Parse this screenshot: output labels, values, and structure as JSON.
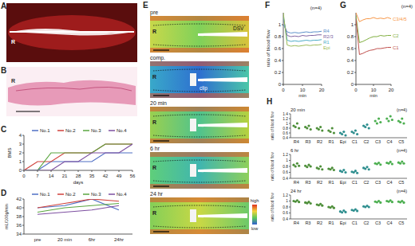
{
  "panels": [
    {
      "label": "A",
      "texts": [
        "R"
      ]
    },
    {
      "label": "B",
      "texts": [
        "R"
      ]
    },
    {
      "label": "E",
      "frames": [
        {
          "title": "pre",
          "texts": [
            "R",
            "DSV"
          ]
        },
        {
          "title": "comp.",
          "texts": [
            "R",
            "clip"
          ]
        },
        {
          "title": "20 min",
          "texts": [
            "R"
          ]
        },
        {
          "title": "6 hr",
          "texts": [
            "R"
          ]
        },
        {
          "title": "24 hr",
          "texts": [
            "R"
          ]
        }
      ],
      "colorbar": [
        "high",
        "low"
      ]
    }
  ],
  "chart_data": [
    {
      "type": "line",
      "label": "C",
      "ylabel": "BMS",
      "xlabel": "days",
      "legend": "top",
      "x": [
        0,
        7,
        14,
        21,
        28,
        35,
        42,
        49,
        56
      ],
      "xlim": [
        0,
        56
      ],
      "xticks": [
        0,
        7,
        14,
        21,
        28,
        35,
        42,
        49,
        56
      ],
      "ylim": [
        0,
        4
      ],
      "yticks": [
        0,
        1,
        2,
        3,
        4
      ],
      "series": [
        {
          "name": "No.1",
          "color": "#4f6fc4",
          "values": [
            0,
            0,
            1,
            1,
            1,
            1,
            2,
            2,
            2
          ]
        },
        {
          "name": "No.2",
          "color": "#d0413b",
          "values": [
            0,
            1,
            1,
            2,
            2,
            2,
            3,
            3,
            3
          ]
        },
        {
          "name": "No.3",
          "color": "#5aa640",
          "values": [
            0,
            0,
            2,
            2,
            2,
            2,
            3,
            3,
            3
          ]
        },
        {
          "name": "No.4",
          "color": "#7d4fa0",
          "values": [
            0,
            0,
            0,
            1,
            1,
            2,
            2,
            2,
            3
          ]
        }
      ]
    },
    {
      "type": "line",
      "label": "D",
      "ylabel": "mL/100g/min",
      "legend": "top",
      "categories": [
        "pre",
        "20 min",
        "6hr",
        "24hr"
      ],
      "ylim": [
        34,
        42
      ],
      "yticks": [
        34,
        36,
        38,
        40,
        42
      ],
      "series": [
        {
          "name": "No.1",
          "color": "#4f6fc4",
          "values": [
            40,
            40.5,
            42,
            39.5
          ]
        },
        {
          "name": "No.2",
          "color": "#d0413b",
          "values": [
            40,
            41,
            42,
            41.5
          ]
        },
        {
          "name": "No.3",
          "color": "#5aa640",
          "values": [
            39,
            40,
            40.5,
            41
          ]
        },
        {
          "name": "No.4",
          "color": "#7d4fa0",
          "values": [
            38.5,
            39,
            39.5,
            40.5
          ]
        }
      ]
    },
    {
      "type": "line",
      "label": "F",
      "ylabel": "ratio of blood flow",
      "xlabel": "min",
      "annotation": "(n=4)",
      "legend": "right",
      "x": [
        0,
        2,
        4,
        6,
        8,
        10,
        12,
        14,
        16,
        18,
        20
      ],
      "xlim": [
        0,
        20
      ],
      "xticks": [
        0,
        10,
        20
      ],
      "ylim": [
        0,
        1.2
      ],
      "yticks": [
        0,
        0.2,
        0.4,
        0.6,
        0.8,
        1
      ],
      "series": [
        {
          "name": "R4",
          "color": "#5b8fc9",
          "values": [
            1.0,
            0.88,
            0.86,
            0.87,
            0.86,
            0.87,
            0.88,
            0.87,
            0.88,
            0.88,
            0.89
          ]
        },
        {
          "name": "R2/3",
          "color": "#8064a2",
          "values": [
            1.1,
            0.82,
            0.8,
            0.81,
            0.8,
            0.82,
            0.81,
            0.82,
            0.82,
            0.83,
            0.83
          ]
        },
        {
          "name": "R1",
          "color": "#4bacc6",
          "values": [
            1.15,
            0.74,
            0.72,
            0.73,
            0.72,
            0.73,
            0.74,
            0.73,
            0.74,
            0.74,
            0.75
          ]
        },
        {
          "name": "Epi",
          "color": "#9bbb59",
          "values": [
            1.2,
            0.66,
            0.64,
            0.65,
            0.64,
            0.65,
            0.66,
            0.65,
            0.66,
            0.66,
            0.67
          ]
        }
      ]
    },
    {
      "type": "line",
      "label": "G",
      "xlabel": "min",
      "annotation": "(n=4)",
      "legend": "right",
      "x": [
        0,
        2,
        4,
        6,
        8,
        10,
        12,
        14,
        16,
        18,
        20
      ],
      "xlim": [
        0,
        20
      ],
      "xticks": [
        0,
        10,
        20
      ],
      "ylim": [
        0,
        1.2
      ],
      "yticks": [
        0,
        0.2,
        0.4,
        0.6,
        0.8,
        1
      ],
      "series": [
        {
          "name": "C3/4/5",
          "color": "#f79646",
          "values": [
            1.2,
            1.05,
            1.08,
            1.1,
            1.1,
            1.12,
            1.1,
            1.11,
            1.1,
            1.12,
            1.1
          ]
        },
        {
          "name": "C2",
          "color": "#7fae3e",
          "values": [
            1.15,
            0.7,
            0.72,
            0.75,
            0.78,
            0.8,
            0.8,
            0.82,
            0.81,
            0.82,
            0.82
          ]
        },
        {
          "name": "C1",
          "color": "#c0504d",
          "values": [
            1.1,
            0.5,
            0.52,
            0.55,
            0.57,
            0.58,
            0.6,
            0.6,
            0.61,
            0.62,
            0.62
          ]
        }
      ]
    },
    {
      "type": "scatter",
      "label": "H",
      "title": "20 min",
      "annotation": "(n=4)",
      "ylabel": "ratio of blood flow",
      "categories": [
        "R4",
        "R3",
        "R2",
        "R1",
        "Epi",
        "C1",
        "C2",
        "C3",
        "C4",
        "C5"
      ],
      "ylim": [
        0.4,
        1.4
      ],
      "yticks": [
        0.4,
        0.6,
        0.8,
        1,
        1.2,
        1.4
      ],
      "colors": [
        "#4e8f3a",
        "#4e8f3a",
        "#4e8f3a",
        "#4e8f3a",
        "#2f8f8f",
        "#2f8f8f",
        "#2f8f8f",
        "#4caf50",
        "#4caf50",
        "#4caf50"
      ],
      "values": [
        [
          0.9,
          0.85,
          1.0,
          0.8
        ],
        [
          0.85,
          0.8,
          0.9,
          0.75
        ],
        [
          0.8,
          0.75,
          0.85,
          0.7
        ],
        [
          0.7,
          0.65,
          0.8,
          0.6
        ],
        [
          0.6,
          0.55,
          0.65,
          0.5
        ],
        [
          0.65,
          0.6,
          0.7,
          0.55
        ],
        [
          0.9,
          0.85,
          0.95,
          0.8
        ],
        [
          1.1,
          1.0,
          1.2,
          1.05
        ],
        [
          1.2,
          1.1,
          1.3,
          1.15
        ],
        [
          1.1,
          1.05,
          1.2,
          1.0
        ]
      ]
    },
    {
      "type": "scatter",
      "title": "6 hr",
      "annotation": "(n=4)",
      "ylabel": "ratio of blood flow",
      "categories": [
        "R4",
        "R3",
        "R2",
        "R1",
        "Epi",
        "C1",
        "C2",
        "C3",
        "C4",
        "C5"
      ],
      "ylim": [
        0.4,
        1.2
      ],
      "yticks": [
        0.4,
        0.6,
        0.8,
        1,
        1.2
      ],
      "colors": [
        "#4e8f3a",
        "#4e8f3a",
        "#4e8f3a",
        "#4e8f3a",
        "#2f8f8f",
        "#2f8f8f",
        "#2f8f8f",
        "#4caf50",
        "#4caf50",
        "#4caf50"
      ],
      "values": [
        [
          0.85,
          0.8,
          0.9,
          0.82
        ],
        [
          0.82,
          0.78,
          0.85,
          0.8
        ],
        [
          0.75,
          0.72,
          0.8,
          0.7
        ],
        [
          0.72,
          0.7,
          0.75,
          0.68
        ],
        [
          0.65,
          0.62,
          0.68,
          0.6
        ],
        [
          0.62,
          0.6,
          0.65,
          0.58
        ],
        [
          0.75,
          0.72,
          0.78,
          0.7
        ],
        [
          0.9,
          0.88,
          0.92,
          0.86
        ],
        [
          0.92,
          0.9,
          0.95,
          0.88
        ],
        [
          0.93,
          0.9,
          0.96,
          0.9
        ]
      ]
    },
    {
      "type": "scatter",
      "title": "24 hr",
      "annotation": "(n=4)",
      "ylabel": "ratio of blood flow",
      "categories": [
        "R4",
        "R3",
        "R2",
        "R1",
        "Epi",
        "C1",
        "C2",
        "C3",
        "C4",
        "C5"
      ],
      "ylim": [
        0.4,
        1.2
      ],
      "yticks": [
        0.4,
        0.6,
        0.8,
        1,
        1.2
      ],
      "colors": [
        "#4e8f3a",
        "#4e8f3a",
        "#4e8f3a",
        "#4e8f3a",
        "#2f8f8f",
        "#2f8f8f",
        "#2f8f8f",
        "#4caf50",
        "#4caf50",
        "#4caf50"
      ],
      "values": [
        [
          1.0,
          0.98,
          1.02,
          0.97
        ],
        [
          0.95,
          0.93,
          0.97,
          0.92
        ],
        [
          0.88,
          0.86,
          0.9,
          0.85
        ],
        [
          0.8,
          0.78,
          0.82,
          0.77
        ],
        [
          0.65,
          0.62,
          0.68,
          0.63
        ],
        [
          0.7,
          0.68,
          0.72,
          0.67
        ],
        [
          0.82,
          0.8,
          0.84,
          0.8
        ],
        [
          0.98,
          0.96,
          1.0,
          0.95
        ],
        [
          1.0,
          0.98,
          1.02,
          0.97
        ],
        [
          0.98,
          0.96,
          1.0,
          0.95
        ]
      ]
    }
  ]
}
